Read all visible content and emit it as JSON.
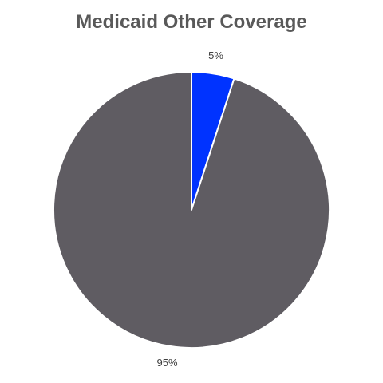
{
  "chart_data": {
    "type": "pie",
    "title": "Medicaid Other Coverage",
    "categories": [
      "",
      ""
    ],
    "values": [
      5,
      95
    ],
    "labels": [
      "5%",
      "95%"
    ],
    "colors": [
      "#0033ff",
      "#5f5c62"
    ],
    "start_angle_deg": 0,
    "direction": "clockwise",
    "legend": "none"
  }
}
